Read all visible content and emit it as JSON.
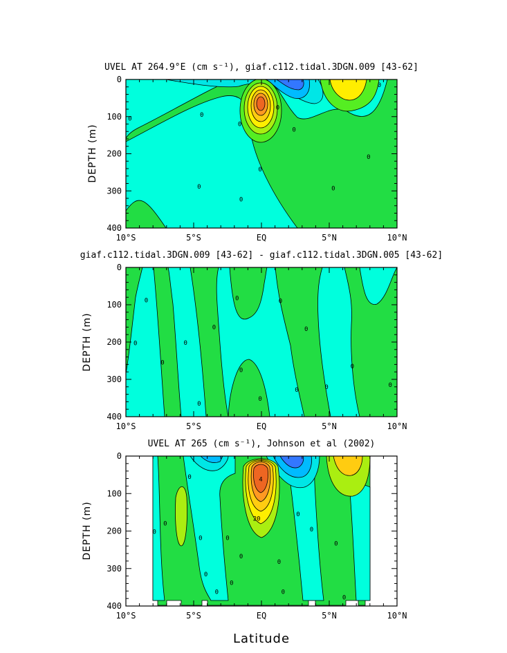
{
  "colors": {
    "light_cyan": "#00ffdd",
    "cyan": "#00e6e6",
    "sky_blue": "#00bbff",
    "blue": "#3377ff",
    "green": "#22dd44",
    "bright_green": "#55ee22",
    "yellow_green": "#aaee11",
    "yellow": "#ffee00",
    "gold": "#ffcc11",
    "orange": "#ff9922",
    "dark_orange": "#ee6622",
    "contour_line": "#000000"
  },
  "xlabel": "Latitude",
  "chart_data": [
    {
      "type": "contour",
      "title": "UVEL AT 264.9°E (cm s⁻¹), giaf.c112.tidal.3DGN.009 [43-62]",
      "ylabel": "DEPTH (m)",
      "xlabel": "",
      "xlim": [
        -10,
        10
      ],
      "ylim": [
        400,
        0
      ],
      "x_ticks": [
        "10°S",
        "5°S",
        "EQ",
        "5°N",
        "10°N"
      ],
      "y_ticks": [
        "0",
        "100",
        "200",
        "300",
        "400"
      ],
      "contour_labels": [
        {
          "text": "0",
          "x": -9.7,
          "y": 105
        },
        {
          "text": "0",
          "x": -4.4,
          "y": 95
        },
        {
          "text": "0",
          "x": -1.6,
          "y": 120
        },
        {
          "text": "0",
          "x": 1.2,
          "y": 75
        },
        {
          "text": "0",
          "x": 2.4,
          "y": 135
        },
        {
          "text": "0",
          "x": 8.7,
          "y": 15
        },
        {
          "text": "0",
          "x": 7.9,
          "y": 208
        },
        {
          "text": "0",
          "x": -0.1,
          "y": 242
        },
        {
          "text": "0",
          "x": -4.6,
          "y": 288
        },
        {
          "text": "0",
          "x": -1.5,
          "y": 323
        },
        {
          "text": "0",
          "x": 5.3,
          "y": 293
        }
      ],
      "features": [
        {
          "name": "equatorial undercurrent core",
          "center": [
            0,
            70
          ],
          "peak": "positive maximum"
        },
        {
          "name": "surface eastward jet",
          "center": [
            6.5,
            15
          ],
          "peak": "positive"
        },
        {
          "name": "surface westward flow",
          "center": [
            2.5,
            30
          ],
          "peak": "negative"
        }
      ]
    },
    {
      "type": "contour",
      "title": "giaf.c112.tidal.3DGN.009 [43-62] - giaf.c112.tidal.3DGN.005 [43-62]",
      "ylabel": "DEPTH (m)",
      "xlabel": "",
      "xlim": [
        -10,
        10
      ],
      "ylim": [
        400,
        0
      ],
      "x_ticks": [
        "10°S",
        "5°S",
        "EQ",
        "5°N",
        "10°N"
      ],
      "y_ticks": [
        "0",
        "100",
        "200",
        "300",
        "400"
      ],
      "contour_labels": [
        {
          "text": "0",
          "x": -8.5,
          "y": 88
        },
        {
          "text": "0",
          "x": -9.3,
          "y": 203
        },
        {
          "text": "0",
          "x": -7.3,
          "y": 255
        },
        {
          "text": "0",
          "x": -5.6,
          "y": 202
        },
        {
          "text": "0",
          "x": -4.6,
          "y": 365
        },
        {
          "text": "0",
          "x": -3.5,
          "y": 160
        },
        {
          "text": "0",
          "x": -1.8,
          "y": 82
        },
        {
          "text": "0",
          "x": -1.5,
          "y": 275
        },
        {
          "text": "0",
          "x": -0.1,
          "y": 352
        },
        {
          "text": "0",
          "x": 1.4,
          "y": 90
        },
        {
          "text": "0",
          "x": 2.6,
          "y": 328
        },
        {
          "text": "0",
          "x": 3.3,
          "y": 165
        },
        {
          "text": "0",
          "x": 4.8,
          "y": 320
        },
        {
          "text": "0",
          "x": 6.7,
          "y": 265
        },
        {
          "text": "0",
          "x": 9.5,
          "y": 315
        }
      ],
      "features": [
        {
          "name": "small positive/negative difference bands",
          "center": [
            0,
            200
          ],
          "peak": "near zero"
        }
      ]
    },
    {
      "type": "contour",
      "title": "UVEL AT 265 (cm s⁻¹), Johnson et al (2002)",
      "ylabel": "DEPTH (m)",
      "xlabel": "",
      "xlim": [
        -10,
        10
      ],
      "ylim": [
        400,
        0
      ],
      "x_ticks": [
        "10°S",
        "5°S",
        "EQ",
        "5°N",
        "10°N"
      ],
      "y_ticks": [
        "0",
        "100",
        "200",
        "300",
        "400"
      ],
      "contour_labels": [
        {
          "text": "0",
          "x": -7.9,
          "y": 202
        },
        {
          "text": "0",
          "x": -7.1,
          "y": 180
        },
        {
          "text": "0",
          "x": -4.5,
          "y": 218
        },
        {
          "text": "0",
          "x": -2.5,
          "y": 218
        },
        {
          "text": "0",
          "x": -1.5,
          "y": 267
        },
        {
          "text": "0",
          "x": -4.1,
          "y": 315
        },
        {
          "text": "0",
          "x": -3.3,
          "y": 362
        },
        {
          "text": "0",
          "x": -2.2,
          "y": 338
        },
        {
          "text": "0",
          "x": 1.3,
          "y": 282
        },
        {
          "text": "0",
          "x": 1.6,
          "y": 362
        },
        {
          "text": "0",
          "x": 2.7,
          "y": 155
        },
        {
          "text": "0",
          "x": 3.7,
          "y": 195
        },
        {
          "text": "0",
          "x": 5.5,
          "y": 233
        },
        {
          "text": "0",
          "x": 6.1,
          "y": 377
        },
        {
          "text": "0",
          "x": -5.3,
          "y": 55
        },
        {
          "text": "4",
          "x": -0.05,
          "y": 62
        },
        {
          "text": "20",
          "x": -0.35,
          "y": 167
        }
      ],
      "features": [
        {
          "name": "equatorial undercurrent core",
          "center": [
            0,
            65
          ],
          "peak": "positive maximum"
        },
        {
          "name": "surface eastward jet",
          "center": [
            6.5,
            15
          ],
          "peak": "positive"
        },
        {
          "name": "surface westward flows",
          "center": [
            2.5,
            30
          ],
          "peak": "negative"
        }
      ]
    }
  ]
}
